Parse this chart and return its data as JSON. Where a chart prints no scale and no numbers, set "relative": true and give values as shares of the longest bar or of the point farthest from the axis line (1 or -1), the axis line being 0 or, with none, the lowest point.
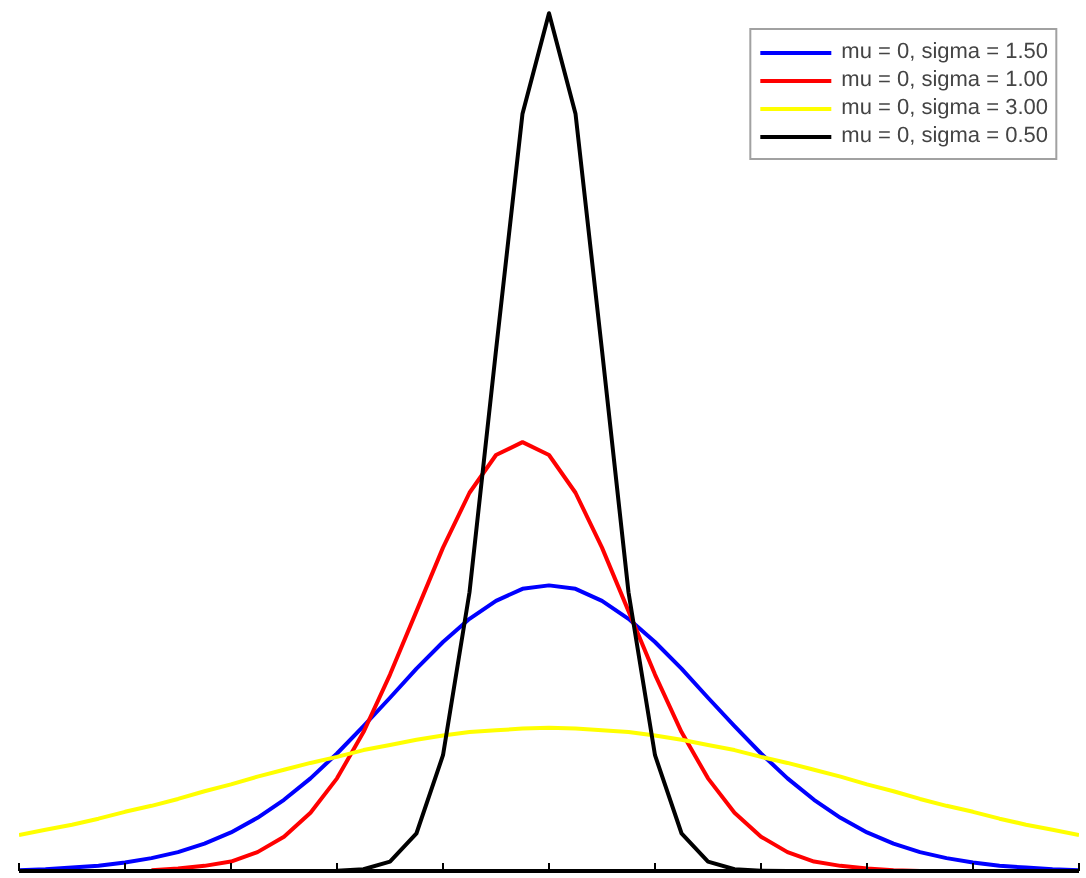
{
  "chart_data": {
    "type": "line",
    "relative": true,
    "legend": "top right",
    "grid": false,
    "marker": "none",
    "line_style": "solid",
    "categories": [
      null,
      null,
      null,
      null,
      null,
      null,
      null,
      null,
      null,
      null,
      null,
      null,
      null,
      null,
      null,
      null,
      null,
      null,
      null,
      null,
      null,
      null,
      null,
      null,
      null,
      null,
      null,
      null,
      null,
      null,
      null,
      null,
      null,
      null,
      null,
      null,
      null,
      null,
      null,
      null,
      null
    ],
    "series": [
      {
        "name": "mu = 0, sigma = 1.50",
        "color": "#0000ff",
        "values": [
          0.001,
          0.002,
          0.004,
          0.006,
          0.01,
          0.015,
          0.022,
          0.032,
          0.045,
          0.062,
          0.083,
          0.108,
          0.137,
          0.169,
          0.202,
          0.236,
          0.267,
          0.294,
          0.315,
          0.329,
          0.333,
          0.329,
          0.315,
          0.294,
          0.267,
          0.236,
          0.202,
          0.169,
          0.137,
          0.108,
          0.083,
          0.062,
          0.045,
          0.032,
          0.022,
          0.015,
          0.01,
          0.006,
          0.004,
          0.002,
          0.001
        ]
      },
      {
        "name": "mu = 0, sigma = 1.00",
        "color": "#ff0000",
        "values": [
          null,
          null,
          null,
          null,
          null,
          0.001,
          0.003,
          0.006,
          0.011,
          0.022,
          0.04,
          0.068,
          0.108,
          0.162,
          0.229,
          0.303,
          0.377,
          0.441,
          0.485,
          0.5,
          0.485,
          0.441,
          0.377,
          0.303,
          0.229,
          0.162,
          0.108,
          0.068,
          0.04,
          0.022,
          0.011,
          0.006,
          0.003,
          0.001,
          0,
          null,
          null,
          null,
          null,
          null,
          null
        ]
      },
      {
        "name": "mu = 0, sigma = 3.00",
        "color": "#ffff00",
        "values": [
          0.042,
          0.048,
          0.054,
          0.061,
          0.069,
          0.076,
          0.084,
          0.093,
          0.101,
          0.11,
          0.118,
          0.126,
          0.133,
          0.141,
          0.147,
          0.153,
          0.158,
          0.162,
          0.164,
          0.166,
          0.167,
          0.166,
          0.164,
          0.162,
          0.158,
          0.153,
          0.147,
          0.141,
          0.133,
          0.126,
          0.118,
          0.11,
          0.101,
          0.093,
          0.084,
          0.076,
          0.069,
          0.061,
          0.054,
          0.048,
          0.042
        ]
      },
      {
        "name": "mu = 0, sigma = 0.50",
        "color": "#000000",
        "values": [
          0,
          0,
          0,
          0,
          0,
          0,
          0,
          0,
          0,
          0,
          0,
          0,
          0.0003,
          0.002,
          0.011,
          0.044,
          0.135,
          0.325,
          0.607,
          0.883,
          1,
          0.883,
          0.607,
          0.325,
          0.135,
          0.044,
          0.011,
          0.002,
          0.0003,
          0,
          0,
          0,
          0,
          0,
          0,
          0,
          0,
          0,
          0,
          0,
          0
        ]
      }
    ]
  }
}
